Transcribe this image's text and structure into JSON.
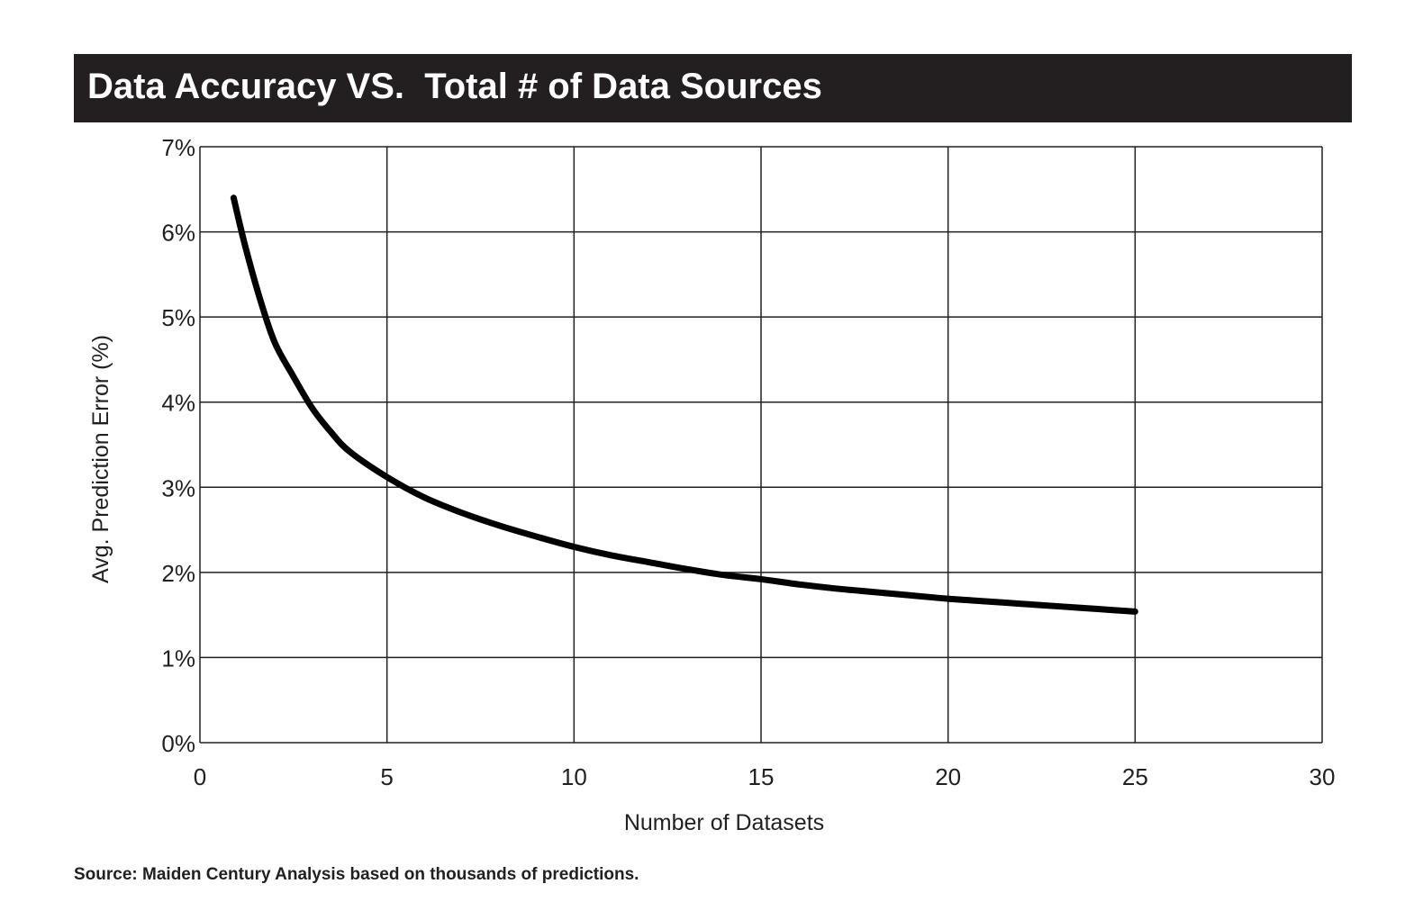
{
  "chart_data": {
    "type": "line",
    "title": "Data Accuracy VS.  Total # of Data Sources",
    "xlabel": "Number of Datasets",
    "ylabel": "Avg. Prediction Error (%)",
    "xlim": [
      0,
      30
    ],
    "ylim": [
      0,
      7
    ],
    "x_ticks": [
      0,
      5,
      10,
      15,
      20,
      25,
      30
    ],
    "y_ticks": [
      0,
      1,
      2,
      3,
      4,
      5,
      6,
      7
    ],
    "x_tick_labels": [
      "0",
      "5",
      "10",
      "15",
      "20",
      "25",
      "30"
    ],
    "y_tick_labels": [
      "0%",
      "1%",
      "2%",
      "3%",
      "4%",
      "5%",
      "6%",
      "7%"
    ],
    "grid": true,
    "series": [
      {
        "name": "Avg. Prediction Error",
        "x": [
          0.9,
          1.2,
          1.6,
          2,
          2.5,
          3,
          3.5,
          4,
          5,
          6,
          7,
          8,
          9,
          10,
          11,
          12,
          13,
          14,
          15,
          16,
          17,
          18,
          19,
          20,
          21,
          22,
          23,
          24,
          25
        ],
        "y": [
          6.4,
          5.85,
          5.22,
          4.7,
          4.3,
          3.93,
          3.65,
          3.42,
          3.12,
          2.88,
          2.7,
          2.55,
          2.42,
          2.3,
          2.2,
          2.12,
          2.04,
          1.97,
          1.92,
          1.86,
          1.81,
          1.77,
          1.73,
          1.69,
          1.66,
          1.63,
          1.6,
          1.57,
          1.54
        ]
      }
    ],
    "source": "Source: Maiden Century Analysis based on thousands of predictions."
  },
  "colors": {
    "title_bg": "#231f20",
    "title_text": "#ffffff",
    "line": "#000000",
    "grid": "#231f20",
    "text": "#231f20"
  }
}
